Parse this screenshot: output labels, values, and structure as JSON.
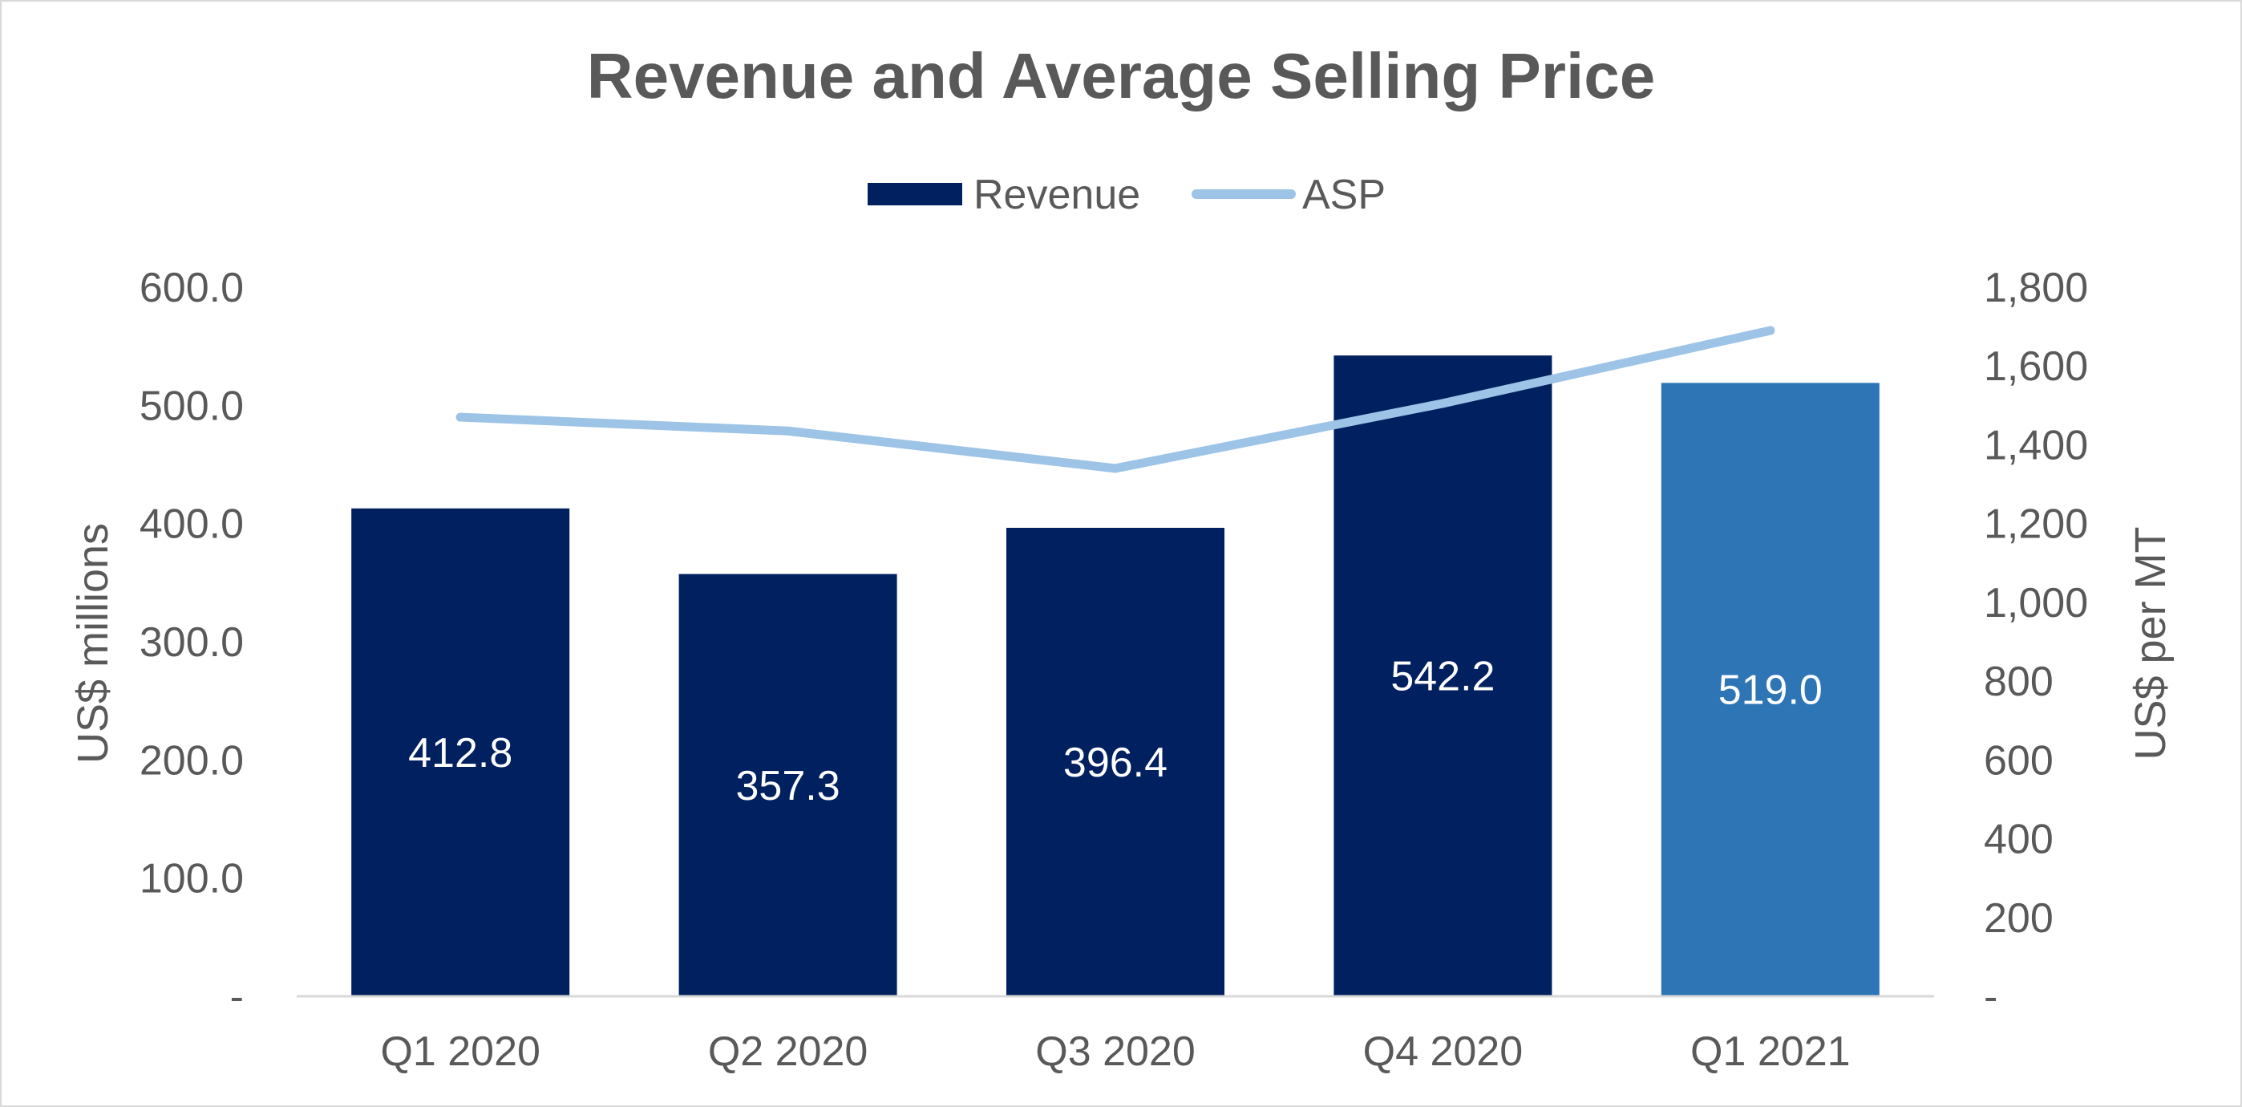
{
  "chart_data": {
    "type": "bar",
    "title": "Revenue and Average Selling Price",
    "categories": [
      "Q1 2020",
      "Q2 2020",
      "Q3 2020",
      "Q4 2020",
      "Q1 2021"
    ],
    "series": [
      {
        "name": "Revenue",
        "type": "bar",
        "axis": "left",
        "values": [
          412.8,
          357.3,
          396.4,
          542.2,
          519.0
        ],
        "labels": [
          "412.8",
          "357.3",
          "396.4",
          "542.2",
          "519.0"
        ],
        "color": "#002060",
        "highlight_color": "#2E75B6",
        "highlight_index": 4
      },
      {
        "name": "ASP",
        "type": "line",
        "axis": "right",
        "values": [
          1470,
          1435,
          1340,
          1505,
          1690
        ],
        "color": "#9DC3E6"
      }
    ],
    "y_left": {
      "label": "US$ millions",
      "range": [
        0,
        600
      ],
      "ticks": [
        0,
        100,
        200,
        300,
        400,
        500,
        600
      ],
      "tick_labels": [
        "-",
        "100.0",
        "200.0",
        "300.0",
        "400.0",
        "500.0",
        "600.0"
      ]
    },
    "y_right": {
      "label": "US$ per MT",
      "range": [
        0,
        1800
      ],
      "ticks": [
        0,
        200,
        400,
        600,
        800,
        1000,
        1200,
        1400,
        1600,
        1800
      ],
      "tick_labels": [
        "-",
        "200",
        "400",
        "600",
        "800",
        "1,000",
        "1,200",
        "1,400",
        "1,600",
        "1,800"
      ]
    },
    "legend": {
      "position": "top-center"
    },
    "grid": false,
    "text_color": "#595959",
    "axis_line_color": "#d9d9d9"
  }
}
